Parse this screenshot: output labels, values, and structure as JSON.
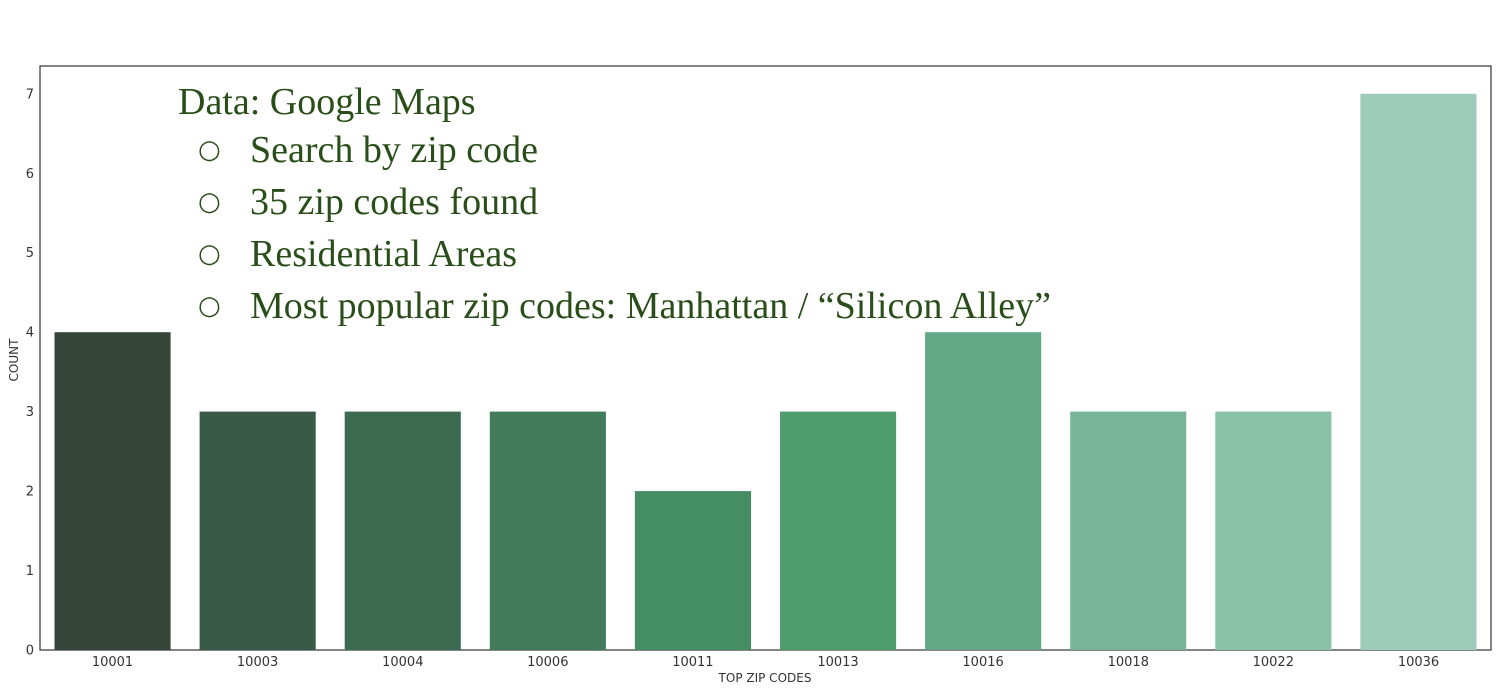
{
  "overlay": {
    "heading": "Data: Google Maps",
    "bullet_glyph": "○",
    "bullets": [
      "Search by zip code",
      "35 zip codes found",
      "Residential Areas",
      "Most popular zip codes: Manhattan / “Silicon Alley”"
    ]
  },
  "chart_data": {
    "type": "bar",
    "categories": [
      "10001",
      "10003",
      "10004",
      "10006",
      "10011",
      "10013",
      "10016",
      "10018",
      "10022",
      "10036"
    ],
    "values": [
      4,
      3,
      3,
      3,
      2,
      3,
      4,
      3,
      3,
      7
    ],
    "xlabel": "TOP ZIP CODES",
    "ylabel": "COUNT",
    "ylim": [
      0,
      7.35
    ],
    "yticks": [
      0,
      1,
      2,
      3,
      4,
      5,
      6,
      7
    ],
    "grid": false,
    "colors": [
      "#36463b",
      "#3a5a48",
      "#3c6b51",
      "#417c5a",
      "#458d62",
      "#4f9c6c",
      "#64a784",
      "#78b598",
      "#8ac2a8",
      "#9ccbba"
    ]
  }
}
